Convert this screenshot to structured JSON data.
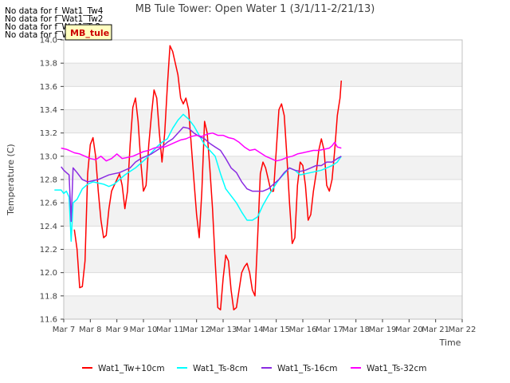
{
  "chart_data": {
    "type": "line",
    "title": "MB Tule Tower: Open Water 1 (3/1/11-2/21/13)",
    "xlabel": "Time",
    "ylabel": "Temperature (C)",
    "xlim": [
      7,
      22
    ],
    "ylim": [
      11.6,
      14.0
    ],
    "xticks": [
      7,
      8,
      9,
      10,
      11,
      12,
      13,
      14,
      15,
      16,
      17,
      18,
      19,
      20,
      21,
      22
    ],
    "xtick_labels": [
      "Mar 7",
      "Mar 8",
      "Mar 9",
      "Mar 10",
      "Mar 11",
      "Mar 12",
      "Mar 13",
      "Mar 14",
      "Mar 15",
      "Mar 16",
      "Mar 17",
      "Mar 18",
      "Mar 19",
      "Mar 20",
      "Mar 21",
      "Mar 22"
    ],
    "yticks": [
      11.6,
      11.8,
      12.0,
      12.2,
      12.4,
      12.6,
      12.8,
      13.0,
      13.2,
      13.4,
      13.6,
      13.8,
      14.0
    ],
    "ytick_labels": [
      "11.6",
      "11.8",
      "12.0",
      "12.2",
      "12.4",
      "12.6",
      "12.8",
      "13.0",
      "13.2",
      "13.4",
      "13.6",
      "13.8",
      "14.0"
    ],
    "grid": true,
    "legend_position": "bottom",
    "no_data_messages": [
      "No data for f_Wat1_Tw4",
      "No data for f_Wat1_Tw2",
      "No data for f_Wat1_Ts2",
      "No data for f_Wat1_Ta4"
    ],
    "tooltip_label": "MB_tule",
    "series": [
      {
        "name": "Wat1_Tw+10cm",
        "color": "#ff0000",
        "points": [
          [
            7.4,
            12.37
          ],
          [
            7.5,
            12.2
          ],
          [
            7.6,
            11.87
          ],
          [
            7.7,
            11.88
          ],
          [
            7.8,
            12.1
          ],
          [
            7.9,
            12.85
          ],
          [
            8.0,
            13.1
          ],
          [
            8.1,
            13.16
          ],
          [
            8.2,
            13.0
          ],
          [
            8.3,
            12.7
          ],
          [
            8.4,
            12.45
          ],
          [
            8.5,
            12.3
          ],
          [
            8.6,
            12.32
          ],
          [
            8.7,
            12.55
          ],
          [
            8.8,
            12.7
          ],
          [
            8.9,
            12.75
          ],
          [
            9.0,
            12.8
          ],
          [
            9.1,
            12.85
          ],
          [
            9.2,
            12.75
          ],
          [
            9.3,
            12.55
          ],
          [
            9.4,
            12.7
          ],
          [
            9.5,
            13.1
          ],
          [
            9.6,
            13.42
          ],
          [
            9.7,
            13.5
          ],
          [
            9.8,
            13.3
          ],
          [
            9.9,
            12.95
          ],
          [
            10.0,
            12.7
          ],
          [
            10.1,
            12.75
          ],
          [
            10.2,
            13.1
          ],
          [
            10.3,
            13.35
          ],
          [
            10.4,
            13.57
          ],
          [
            10.5,
            13.5
          ],
          [
            10.6,
            13.2
          ],
          [
            10.7,
            12.95
          ],
          [
            10.8,
            13.2
          ],
          [
            10.9,
            13.6
          ],
          [
            11.0,
            13.95
          ],
          [
            11.1,
            13.9
          ],
          [
            11.2,
            13.8
          ],
          [
            11.3,
            13.7
          ],
          [
            11.4,
            13.5
          ],
          [
            11.5,
            13.45
          ],
          [
            11.6,
            13.5
          ],
          [
            11.7,
            13.4
          ],
          [
            11.8,
            13.1
          ],
          [
            11.9,
            12.8
          ],
          [
            12.0,
            12.5
          ],
          [
            12.1,
            12.3
          ],
          [
            12.2,
            12.7
          ],
          [
            12.3,
            13.3
          ],
          [
            12.4,
            13.2
          ],
          [
            12.5,
            12.9
          ],
          [
            12.6,
            12.55
          ],
          [
            12.7,
            12.1
          ],
          [
            12.8,
            11.7
          ],
          [
            12.9,
            11.68
          ],
          [
            13.0,
            11.95
          ],
          [
            13.1,
            12.15
          ],
          [
            13.2,
            12.1
          ],
          [
            13.3,
            11.85
          ],
          [
            13.4,
            11.68
          ],
          [
            13.5,
            11.7
          ],
          [
            13.6,
            11.85
          ],
          [
            13.7,
            12.0
          ],
          [
            13.8,
            12.05
          ],
          [
            13.9,
            12.08
          ],
          [
            14.0,
            12.0
          ],
          [
            14.1,
            11.85
          ],
          [
            14.2,
            11.8
          ],
          [
            14.3,
            12.3
          ],
          [
            14.4,
            12.85
          ],
          [
            14.5,
            12.95
          ],
          [
            14.6,
            12.9
          ],
          [
            14.7,
            12.8
          ],
          [
            14.8,
            12.7
          ],
          [
            14.9,
            12.7
          ],
          [
            15.0,
            13.05
          ],
          [
            15.1,
            13.4
          ],
          [
            15.2,
            13.45
          ],
          [
            15.3,
            13.35
          ],
          [
            15.4,
            13.0
          ],
          [
            15.5,
            12.6
          ],
          [
            15.6,
            12.25
          ],
          [
            15.7,
            12.3
          ],
          [
            15.8,
            12.75
          ],
          [
            15.9,
            12.95
          ],
          [
            16.0,
            12.92
          ],
          [
            16.1,
            12.75
          ],
          [
            16.2,
            12.45
          ],
          [
            16.3,
            12.5
          ],
          [
            16.4,
            12.7
          ],
          [
            16.5,
            12.85
          ],
          [
            16.6,
            13.05
          ],
          [
            16.7,
            13.15
          ],
          [
            16.8,
            13.05
          ],
          [
            16.9,
            12.75
          ],
          [
            17.0,
            12.7
          ],
          [
            17.1,
            12.8
          ],
          [
            17.2,
            13.05
          ],
          [
            17.3,
            13.35
          ],
          [
            17.4,
            13.5
          ],
          [
            17.45,
            13.65
          ]
        ]
      },
      {
        "name": "Wat1_Ts-8cm",
        "color": "#00ffff",
        "points": [
          [
            6.65,
            12.71
          ],
          [
            6.9,
            12.71
          ],
          [
            7.0,
            12.68
          ],
          [
            7.1,
            12.7
          ],
          [
            7.2,
            12.65
          ],
          [
            7.28,
            12.27
          ],
          [
            7.35,
            12.6
          ],
          [
            7.5,
            12.63
          ],
          [
            7.7,
            12.72
          ],
          [
            7.9,
            12.76
          ],
          [
            8.1,
            12.78
          ],
          [
            8.3,
            12.77
          ],
          [
            8.5,
            12.76
          ],
          [
            8.7,
            12.74
          ],
          [
            8.9,
            12.76
          ],
          [
            9.1,
            12.8
          ],
          [
            9.3,
            12.84
          ],
          [
            9.5,
            12.87
          ],
          [
            9.7,
            12.9
          ],
          [
            9.9,
            12.94
          ],
          [
            10.1,
            12.98
          ],
          [
            10.3,
            13.03
          ],
          [
            10.5,
            13.08
          ],
          [
            10.7,
            13.12
          ],
          [
            10.9,
            13.15
          ],
          [
            11.1,
            13.24
          ],
          [
            11.3,
            13.31
          ],
          [
            11.5,
            13.36
          ],
          [
            11.6,
            13.34
          ],
          [
            11.7,
            13.32
          ],
          [
            11.9,
            13.26
          ],
          [
            12.1,
            13.18
          ],
          [
            12.3,
            13.1
          ],
          [
            12.5,
            13.05
          ],
          [
            12.7,
            13.0
          ],
          [
            12.9,
            12.85
          ],
          [
            13.1,
            12.72
          ],
          [
            13.3,
            12.66
          ],
          [
            13.5,
            12.6
          ],
          [
            13.7,
            12.52
          ],
          [
            13.9,
            12.45
          ],
          [
            14.1,
            12.45
          ],
          [
            14.3,
            12.48
          ],
          [
            14.5,
            12.58
          ],
          [
            14.7,
            12.66
          ],
          [
            14.9,
            12.73
          ],
          [
            15.1,
            12.8
          ],
          [
            15.3,
            12.85
          ],
          [
            15.5,
            12.9
          ],
          [
            15.7,
            12.88
          ],
          [
            15.9,
            12.84
          ],
          [
            16.1,
            12.85
          ],
          [
            16.3,
            12.86
          ],
          [
            16.5,
            12.87
          ],
          [
            16.7,
            12.88
          ],
          [
            16.9,
            12.9
          ],
          [
            17.1,
            12.92
          ],
          [
            17.3,
            12.95
          ],
          [
            17.45,
            13.0
          ]
        ]
      },
      {
        "name": "Wat1_Ts-16cm",
        "color": "#8a2be2",
        "points": [
          [
            6.9,
            12.91
          ],
          [
            7.0,
            12.88
          ],
          [
            7.1,
            12.86
          ],
          [
            7.2,
            12.84
          ],
          [
            7.28,
            12.44
          ],
          [
            7.35,
            12.9
          ],
          [
            7.5,
            12.86
          ],
          [
            7.7,
            12.8
          ],
          [
            7.9,
            12.78
          ],
          [
            8.1,
            12.79
          ],
          [
            8.3,
            12.8
          ],
          [
            8.5,
            12.82
          ],
          [
            8.7,
            12.84
          ],
          [
            8.9,
            12.85
          ],
          [
            9.1,
            12.86
          ],
          [
            9.3,
            12.88
          ],
          [
            9.5,
            12.9
          ],
          [
            9.7,
            12.95
          ],
          [
            9.9,
            12.98
          ],
          [
            10.1,
            13.0
          ],
          [
            10.3,
            13.02
          ],
          [
            10.5,
            13.05
          ],
          [
            10.7,
            13.08
          ],
          [
            10.9,
            13.12
          ],
          [
            11.1,
            13.15
          ],
          [
            11.3,
            13.2
          ],
          [
            11.5,
            13.25
          ],
          [
            11.7,
            13.24
          ],
          [
            11.9,
            13.2
          ],
          [
            12.1,
            13.17
          ],
          [
            12.3,
            13.15
          ],
          [
            12.5,
            13.11
          ],
          [
            12.7,
            13.08
          ],
          [
            12.9,
            13.05
          ],
          [
            13.1,
            12.98
          ],
          [
            13.3,
            12.9
          ],
          [
            13.5,
            12.86
          ],
          [
            13.7,
            12.78
          ],
          [
            13.9,
            12.72
          ],
          [
            14.1,
            12.7
          ],
          [
            14.3,
            12.7
          ],
          [
            14.5,
            12.7
          ],
          [
            14.7,
            12.72
          ],
          [
            14.9,
            12.76
          ],
          [
            15.1,
            12.8
          ],
          [
            15.3,
            12.86
          ],
          [
            15.5,
            12.9
          ],
          [
            15.7,
            12.88
          ],
          [
            15.9,
            12.87
          ],
          [
            16.1,
            12.88
          ],
          [
            16.3,
            12.9
          ],
          [
            16.5,
            12.92
          ],
          [
            16.7,
            12.92
          ],
          [
            16.9,
            12.95
          ],
          [
            17.1,
            12.95
          ],
          [
            17.3,
            12.98
          ],
          [
            17.45,
            13.0
          ]
        ]
      },
      {
        "name": "Wat1_Ts-32cm",
        "color": "#ff00ff",
        "points": [
          [
            6.9,
            13.07
          ],
          [
            7.1,
            13.06
          ],
          [
            7.2,
            13.05
          ],
          [
            7.4,
            13.03
          ],
          [
            7.6,
            13.02
          ],
          [
            7.8,
            13.0
          ],
          [
            8.0,
            12.98
          ],
          [
            8.2,
            12.97
          ],
          [
            8.4,
            13.0
          ],
          [
            8.6,
            12.96
          ],
          [
            8.8,
            12.98
          ],
          [
            9.0,
            13.02
          ],
          [
            9.2,
            12.98
          ],
          [
            9.4,
            12.99
          ],
          [
            9.6,
            13.0
          ],
          [
            9.8,
            13.02
          ],
          [
            10.0,
            13.04
          ],
          [
            10.2,
            13.05
          ],
          [
            10.4,
            13.07
          ],
          [
            10.6,
            13.08
          ],
          [
            10.8,
            13.08
          ],
          [
            11.0,
            13.1
          ],
          [
            11.2,
            13.12
          ],
          [
            11.4,
            13.14
          ],
          [
            11.6,
            13.15
          ],
          [
            11.8,
            13.17
          ],
          [
            12.0,
            13.18
          ],
          [
            12.2,
            13.17
          ],
          [
            12.4,
            13.19
          ],
          [
            12.6,
            13.2
          ],
          [
            12.8,
            13.18
          ],
          [
            13.0,
            13.18
          ],
          [
            13.2,
            13.16
          ],
          [
            13.4,
            13.15
          ],
          [
            13.6,
            13.12
          ],
          [
            13.8,
            13.08
          ],
          [
            14.0,
            13.05
          ],
          [
            14.2,
            13.06
          ],
          [
            14.4,
            13.03
          ],
          [
            14.6,
            13.0
          ],
          [
            14.8,
            12.98
          ],
          [
            15.0,
            12.96
          ],
          [
            15.2,
            12.97
          ],
          [
            15.4,
            12.99
          ],
          [
            15.6,
            13.0
          ],
          [
            15.8,
            13.02
          ],
          [
            16.0,
            13.03
          ],
          [
            16.2,
            13.04
          ],
          [
            16.4,
            13.05
          ],
          [
            16.6,
            13.05
          ],
          [
            16.8,
            13.06
          ],
          [
            17.0,
            13.07
          ],
          [
            17.1,
            13.09
          ],
          [
            17.2,
            13.12
          ],
          [
            17.3,
            13.08
          ],
          [
            17.45,
            13.07
          ]
        ]
      }
    ]
  }
}
